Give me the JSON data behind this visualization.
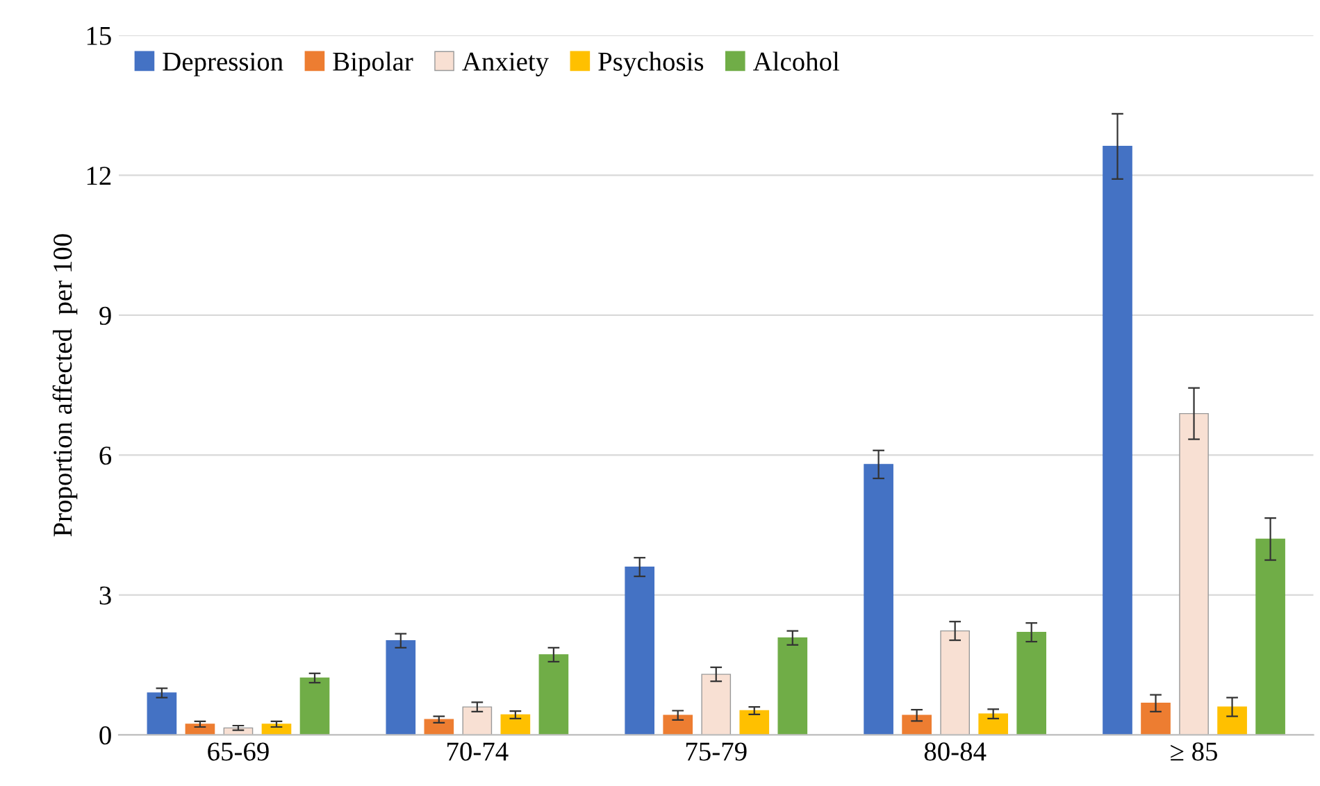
{
  "chart_data": {
    "type": "bar",
    "ylabel": "Proportion affected  per 100",
    "categories": [
      "65-69",
      "70-74",
      "75-79",
      "80-84",
      "≥ 85"
    ],
    "series": [
      {
        "name": "Depression",
        "color": "#4472c4",
        "values": [
          0.9,
          2.02,
          3.6,
          5.8,
          12.62
        ],
        "errors": [
          0.1,
          0.15,
          0.2,
          0.3,
          0.7
        ]
      },
      {
        "name": "Bipolar",
        "color": "#ed7d31",
        "values": [
          0.23,
          0.33,
          0.42,
          0.42,
          0.68
        ],
        "errors": [
          0.06,
          0.07,
          0.1,
          0.12,
          0.18
        ]
      },
      {
        "name": "Anxiety",
        "color": "#f8e0d3",
        "values": [
          0.15,
          0.6,
          1.3,
          2.23,
          6.89
        ],
        "errors": [
          0.05,
          0.1,
          0.15,
          0.2,
          0.55
        ]
      },
      {
        "name": "Psychosis",
        "color": "#ffc000",
        "values": [
          0.23,
          0.43,
          0.52,
          0.45,
          0.6
        ],
        "errors": [
          0.06,
          0.08,
          0.08,
          0.1,
          0.2
        ]
      },
      {
        "name": "Alcohol",
        "color": "#70ad47",
        "values": [
          1.22,
          1.72,
          2.08,
          2.2,
          4.2
        ],
        "errors": [
          0.1,
          0.15,
          0.15,
          0.2,
          0.45
        ]
      }
    ],
    "ylim": [
      0,
      15
    ],
    "yticks": [
      0,
      3,
      6,
      9,
      12,
      15
    ],
    "grid": "y",
    "legend": "top left"
  }
}
